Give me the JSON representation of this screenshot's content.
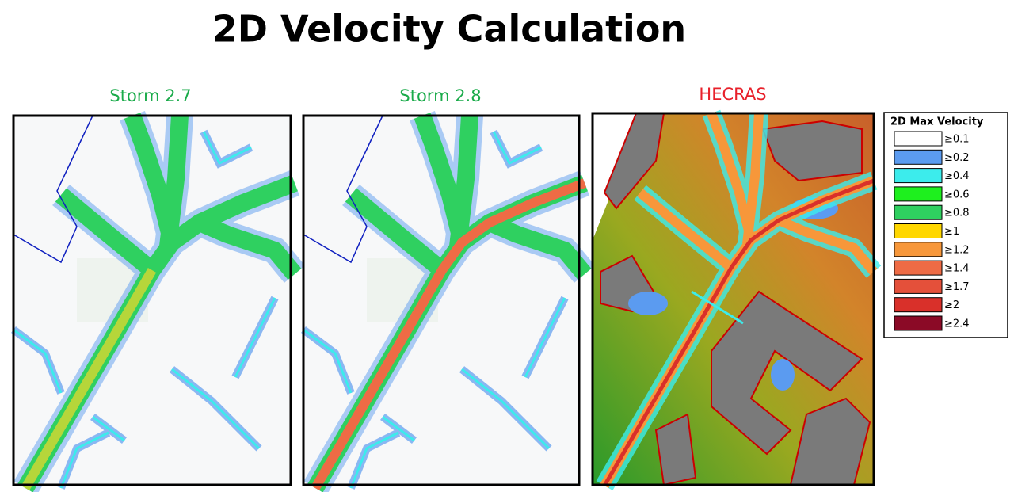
{
  "title": "2D Velocity Calculation",
  "panels": [
    {
      "label": "Storm 2.7",
      "color": "#1aab4a"
    },
    {
      "label": "Storm 2.8",
      "color": "#1aab4a"
    },
    {
      "label": "HECRAS",
      "color": "#e8202a"
    }
  ],
  "legend": {
    "title": "2D Max Velocity",
    "items": [
      {
        "label": "≥0.1",
        "color": "#ffffff"
      },
      {
        "label": "≥0.2",
        "color": "#5b9bf0"
      },
      {
        "label": "≥0.4",
        "color": "#3cecec"
      },
      {
        "label": "≥0.6",
        "color": "#1ef01e"
      },
      {
        "label": "≥0.8",
        "color": "#2fd060"
      },
      {
        "label": "≥1",
        "color": "#ffd700"
      },
      {
        "label": "≥1.2",
        "color": "#f7973a"
      },
      {
        "label": "≥1.4",
        "color": "#ee6b45"
      },
      {
        "label": "≥1.7",
        "color": "#e4503a"
      },
      {
        "label": "≥2",
        "color": "#d9302a"
      },
      {
        "label": "≥2.4",
        "color": "#8b0a26"
      }
    ]
  }
}
